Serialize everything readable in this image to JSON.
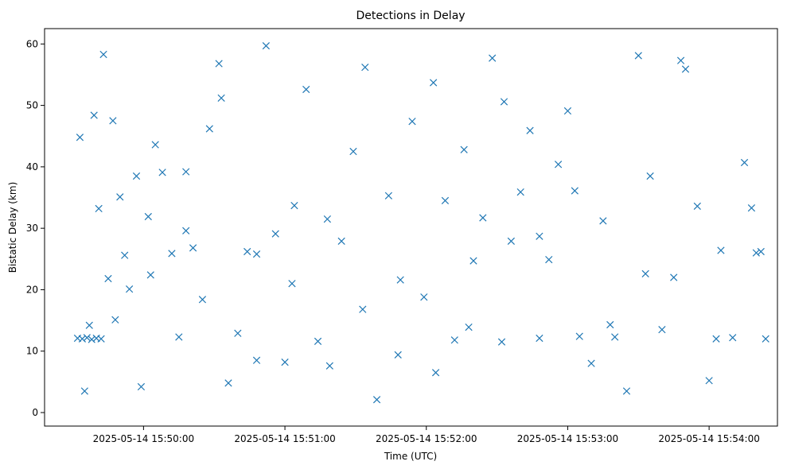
{
  "chart_data": {
    "type": "scatter",
    "title": "Detections in Delay",
    "xlabel": "Time (UTC)",
    "ylabel": "Bistatic Delay (km)",
    "marker": "x",
    "color": "#1f77b4",
    "grid": false,
    "x_is_time": true,
    "xlim": [
      "2025-05-14 15:49:18",
      "2025-05-14 15:54:29"
    ],
    "ylim": [
      -2.2,
      62.5
    ],
    "x_ticks": [
      "2025-05-14 15:50:00",
      "2025-05-14 15:51:00",
      "2025-05-14 15:52:00",
      "2025-05-14 15:53:00",
      "2025-05-14 15:54:00"
    ],
    "y_ticks": [
      0,
      10,
      20,
      30,
      40,
      50,
      60
    ],
    "series": [
      {
        "x": [
          "15:49:32",
          "15:49:34",
          "15:49:36",
          "15:49:38",
          "15:49:40",
          "15:49:42",
          "15:49:35",
          "15:49:37",
          "15:49:39",
          "15:49:41",
          "15:49:43",
          "15:49:45",
          "15:49:47",
          "15:49:50",
          "15:49:52",
          "15:49:54",
          "15:49:57",
          "15:49:59",
          "15:50:02",
          "15:50:05",
          "15:50:08",
          "15:50:12",
          "15:50:15",
          "15:50:18",
          "15:50:21",
          "15:50:25",
          "15:50:28",
          "15:50:32",
          "15:50:36",
          "15:50:40",
          "15:50:44",
          "15:50:48",
          "15:50:52",
          "15:50:56",
          "15:51:00",
          "15:51:04",
          "15:51:09",
          "15:51:14",
          "15:51:19",
          "15:51:24",
          "15:51:29",
          "15:51:34",
          "15:51:39",
          "15:51:44",
          "15:51:49",
          "15:51:54",
          "15:51:59",
          "15:52:04",
          "15:52:08",
          "15:52:12",
          "15:52:16",
          "15:52:20",
          "15:52:24",
          "15:52:28",
          "15:52:32",
          "15:52:36",
          "15:52:40",
          "15:52:44",
          "15:52:48",
          "15:52:52",
          "15:52:56",
          "15:53:00",
          "15:53:05",
          "15:53:10",
          "15:53:15",
          "15:53:20",
          "15:53:25",
          "15:53:30",
          "15:53:35",
          "15:53:40",
          "15:53:45",
          "15:53:50",
          "15:53:55",
          "15:54:00",
          "15:54:05",
          "15:54:10",
          "15:54:15",
          "15:54:20",
          "15:54:22",
          "15:54:24",
          "15:49:33",
          "15:49:48",
          "15:50:03",
          "15:50:18",
          "15:50:33",
          "15:50:48",
          "15:51:03",
          "15:51:18",
          "15:51:33",
          "15:51:48",
          "15:52:03",
          "15:52:18",
          "15:52:33",
          "15:52:48",
          "15:53:03",
          "15:53:18",
          "15:53:33",
          "15:53:48",
          "15:54:03",
          "15:54:18"
        ],
        "y": [
          12.1,
          12.0,
          12.2,
          11.9,
          12.1,
          12.0,
          3.5,
          14.2,
          48.4,
          33.2,
          58.3,
          21.8,
          47.5,
          35.1,
          25.6,
          20.1,
          38.5,
          4.2,
          31.9,
          43.6,
          39.1,
          25.9,
          12.3,
          29.6,
          26.8,
          18.4,
          46.2,
          56.8,
          4.8,
          12.9,
          26.2,
          25.8,
          59.7,
          29.1,
          8.2,
          33.7,
          52.6,
          11.6,
          7.6,
          27.9,
          42.5,
          56.2,
          2.1,
          35.3,
          21.6,
          47.4,
          18.8,
          6.5,
          34.5,
          11.8,
          42.8,
          24.7,
          31.7,
          57.7,
          11.5,
          27.9,
          35.9,
          45.9,
          12.1,
          24.9,
          40.4,
          49.1,
          12.4,
          8.0,
          31.2,
          12.3,
          3.5,
          58.1,
          38.5,
          13.5,
          22.0,
          55.9,
          33.6,
          5.2,
          26.4,
          12.2,
          40.7,
          26.0,
          26.2,
          12.0,
          44.8,
          15.1,
          22.4,
          39.2,
          51.2,
          8.5,
          21.0,
          31.5,
          16.8,
          9.4,
          53.7,
          13.9,
          50.6,
          28.7,
          36.1,
          14.3,
          22.6,
          57.3,
          12.0,
          33.3
        ]
      }
    ]
  }
}
